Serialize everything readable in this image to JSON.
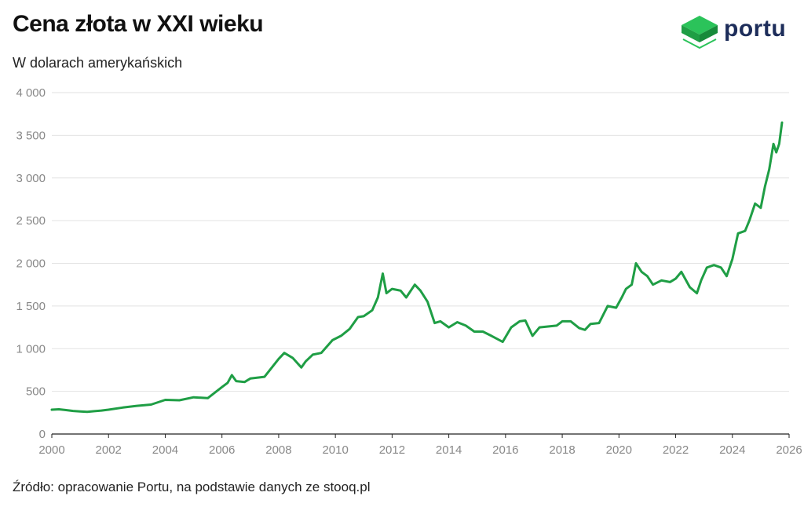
{
  "header": {
    "title": "Cena złota w XXI wieku",
    "subtitle": "W dolarach amerykańskich"
  },
  "logo": {
    "text": "portu",
    "icon": "cube-icon",
    "color": "#1d2d5a",
    "accent": "#21b04b"
  },
  "footer": {
    "source": "Źródło: opracowanie Portu, na podstawie danych ze stooq.pl"
  },
  "chart_data": {
    "type": "line",
    "title": "Cena złota w XXI wieku",
    "subtitle": "W dolarach amerykańskich",
    "xlim": [
      2000,
      2026
    ],
    "ylim": [
      0,
      4000
    ],
    "x_ticks": [
      2000,
      2002,
      2004,
      2006,
      2008,
      2010,
      2012,
      2014,
      2016,
      2018,
      2020,
      2022,
      2024,
      2026
    ],
    "x_tick_labels": [
      "2000",
      "2002",
      "2004",
      "2006",
      "2008",
      "2010",
      "2012",
      "2014",
      "2016",
      "2018",
      "2020",
      "2022",
      "2024",
      "2026"
    ],
    "y_ticks": [
      0,
      500,
      1000,
      1500,
      2000,
      2500,
      3000,
      3500,
      4000
    ],
    "y_tick_labels": [
      "0",
      "500",
      "1 000",
      "1 500",
      "2 000",
      "2 500",
      "3 000",
      "3 500",
      "4 000"
    ],
    "grid": true,
    "line_color": "#1f9e45",
    "series": [
      {
        "x": [
          2000.0,
          2000.25,
          2000.5,
          2000.75,
          2001.0,
          2001.25,
          2001.5,
          2001.75,
          2002.0,
          2002.5,
          2003.0,
          2003.5,
          2004.0,
          2004.5,
          2005.0,
          2005.5,
          2006.0,
          2006.2,
          2006.35,
          2006.5,
          2006.8,
          2007.0,
          2007.5,
          2008.0,
          2008.2,
          2008.5,
          2008.8,
          2008.95,
          2009.2,
          2009.5,
          2009.9,
          2010.2,
          2010.5,
          2010.8,
          2011.0,
          2011.3,
          2011.5,
          2011.67,
          2011.8,
          2012.0,
          2012.3,
          2012.5,
          2012.8,
          2013.0,
          2013.25,
          2013.5,
          2013.7,
          2014.0,
          2014.3,
          2014.6,
          2014.9,
          2015.2,
          2015.5,
          2015.9,
          2016.2,
          2016.5,
          2016.7,
          2016.95,
          2017.2,
          2017.5,
          2017.8,
          2018.0,
          2018.3,
          2018.6,
          2018.8,
          2019.0,
          2019.3,
          2019.6,
          2019.9,
          2020.1,
          2020.25,
          2020.45,
          2020.6,
          2020.8,
          2021.0,
          2021.2,
          2021.5,
          2021.8,
          2022.0,
          2022.2,
          2022.5,
          2022.75,
          2022.9,
          2023.1,
          2023.35,
          2023.6,
          2023.8,
          2024.0,
          2024.2,
          2024.45,
          2024.6,
          2024.8,
          2025.0,
          2025.15,
          2025.3,
          2025.45,
          2025.55,
          2025.65,
          2025.75
        ],
        "y": [
          285,
          290,
          280,
          270,
          265,
          260,
          268,
          275,
          285,
          310,
          330,
          345,
          400,
          395,
          430,
          420,
          550,
          600,
          690,
          620,
          610,
          650,
          670,
          880,
          950,
          890,
          780,
          850,
          930,
          950,
          1100,
          1150,
          1230,
          1370,
          1380,
          1450,
          1600,
          1880,
          1650,
          1700,
          1680,
          1600,
          1750,
          1680,
          1550,
          1300,
          1320,
          1250,
          1310,
          1270,
          1200,
          1200,
          1150,
          1080,
          1250,
          1320,
          1330,
          1150,
          1250,
          1260,
          1270,
          1320,
          1320,
          1240,
          1220,
          1290,
          1300,
          1500,
          1480,
          1600,
          1700,
          1750,
          2000,
          1900,
          1850,
          1750,
          1800,
          1780,
          1820,
          1900,
          1720,
          1650,
          1800,
          1950,
          1980,
          1950,
          1850,
          2050,
          2350,
          2380,
          2500,
          2700,
          2650,
          2900,
          3100,
          3400,
          3300,
          3400,
          3650
        ]
      }
    ]
  }
}
